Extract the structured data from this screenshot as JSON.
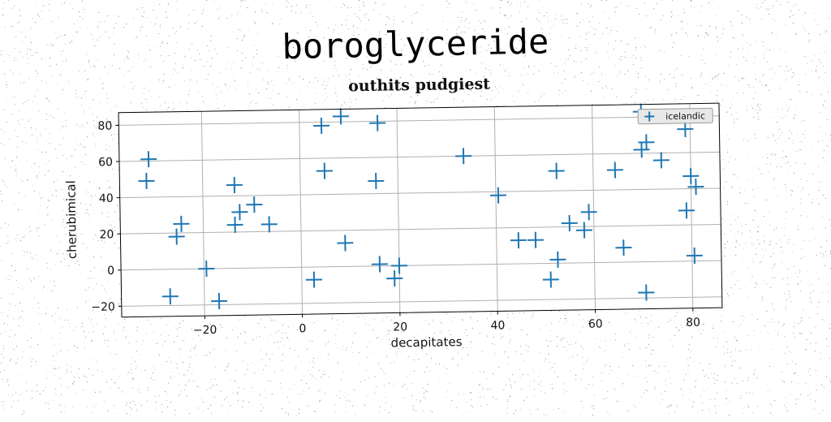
{
  "suptitle": "boroglyceride",
  "chart_data": {
    "type": "scatter",
    "title": "outhits pudgiest",
    "xlabel": "decapitates",
    "ylabel": "cherubimical",
    "xlim": [
      -37,
      86
    ],
    "ylim": [
      -26,
      87
    ],
    "xticks": [
      -20,
      0,
      20,
      40,
      60,
      80
    ],
    "yticks": [
      -20,
      0,
      20,
      40,
      60,
      80
    ],
    "grid": true,
    "legend_position": "top-right",
    "marker": "plus",
    "series": [
      {
        "name": "icelandic",
        "color": "#1f77b4",
        "points": [
          [
            -31,
            61
          ],
          [
            -31.5,
            49
          ],
          [
            -24.5,
            25
          ],
          [
            -25.5,
            18
          ],
          [
            -27,
            -15
          ],
          [
            -19.5,
            0
          ],
          [
            -17,
            -18
          ],
          [
            -13.5,
            46
          ],
          [
            -12.5,
            31
          ],
          [
            -13.5,
            24
          ],
          [
            -9.5,
            35
          ],
          [
            -6.5,
            24
          ],
          [
            2.5,
            -7
          ],
          [
            4.5,
            78
          ],
          [
            5,
            53
          ],
          [
            8.5,
            83
          ],
          [
            9,
            13
          ],
          [
            16,
            79
          ],
          [
            15.5,
            47
          ],
          [
            16,
            1
          ],
          [
            19,
            -7
          ],
          [
            20,
            0
          ],
          [
            33.5,
            60
          ],
          [
            40.5,
            38
          ],
          [
            44.5,
            13
          ],
          [
            48,
            13
          ],
          [
            51,
            -9
          ],
          [
            52.5,
            2
          ],
          [
            52.5,
            51
          ],
          [
            55,
            22
          ],
          [
            58,
            18
          ],
          [
            59,
            28
          ],
          [
            64.5,
            51
          ],
          [
            66,
            8
          ],
          [
            70,
            83
          ],
          [
            70,
            62
          ],
          [
            71,
            66
          ],
          [
            70.5,
            -17
          ],
          [
            74,
            56
          ],
          [
            79,
            73
          ],
          [
            79,
            28
          ],
          [
            80,
            47
          ],
          [
            80.5,
            3
          ],
          [
            81,
            41
          ]
        ]
      }
    ]
  }
}
